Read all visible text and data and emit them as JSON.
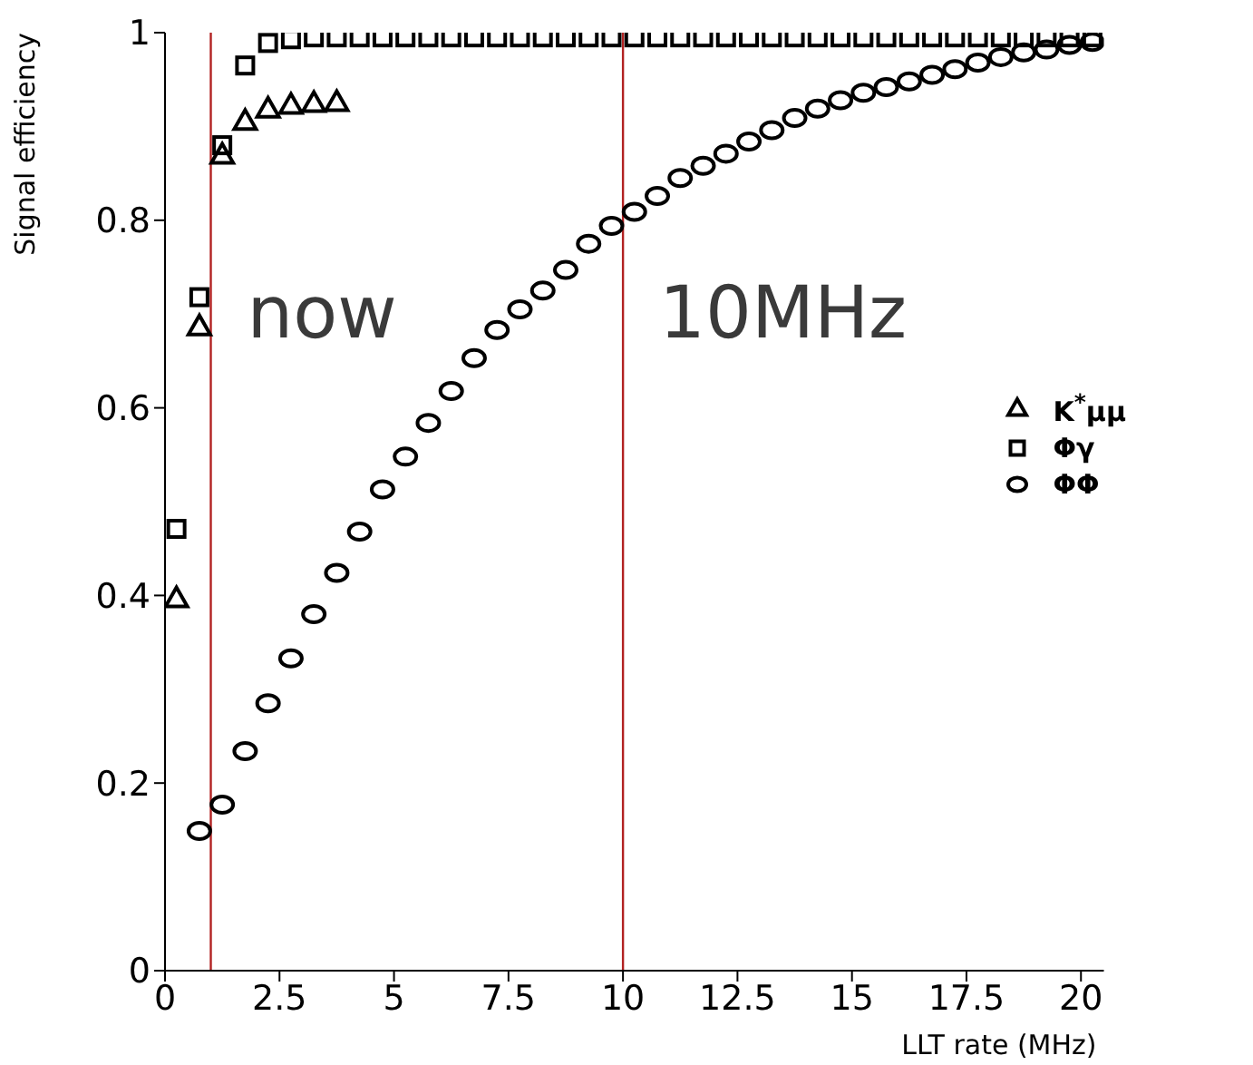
{
  "chart_data": {
    "type": "scatter",
    "xlabel": "LLT rate (MHz)",
    "ylabel": "Signal efficiency",
    "xlim": [
      0,
      20.5
    ],
    "xticks": [
      0,
      2.5,
      5,
      7.5,
      10,
      12.5,
      15,
      17.5,
      20
    ],
    "ylim": [
      0,
      1
    ],
    "yticks": [
      0,
      0.2,
      0.4,
      0.6,
      0.8,
      1
    ],
    "grid": false,
    "legend": "right",
    "series": [
      {
        "name": "K$^{*}$μμ",
        "color": "#000000",
        "marker": "triangle",
        "x": [
          0.25,
          0.75,
          1.25,
          1.75,
          2.25,
          2.75,
          3.25,
          3.75
        ],
        "values": [
          0.397,
          0.687,
          0.87,
          0.906,
          0.919,
          0.923,
          0.925,
          0.926
        ]
      },
      {
        "name": "Φγ",
        "color": "#000000",
        "marker": "square",
        "x": [
          0.25,
          0.75,
          1.25,
          1.75,
          2.25,
          2.75,
          3.25,
          3.75,
          4.25,
          4.75,
          5.25,
          5.75,
          6.25,
          6.75,
          7.25,
          7.75,
          8.25,
          8.75,
          9.25,
          9.75,
          10.25,
          10.75,
          11.25,
          11.75,
          12.25,
          12.75,
          13.25,
          13.75,
          14.25,
          14.75,
          15.25,
          15.75,
          16.25,
          16.75,
          17.25,
          17.75,
          18.25,
          18.75,
          19.25,
          19.75,
          20.25
        ],
        "values": [
          0.471,
          0.718,
          0.88,
          0.965,
          0.989,
          0.993,
          0.995,
          0.995,
          0.995,
          0.995,
          0.995,
          0.995,
          0.995,
          0.995,
          0.995,
          0.995,
          0.995,
          0.995,
          0.995,
          0.995,
          0.995,
          0.995,
          0.995,
          0.995,
          0.995,
          0.995,
          0.995,
          0.995,
          0.995,
          0.995,
          0.995,
          0.995,
          0.995,
          0.995,
          0.995,
          0.995,
          0.995,
          0.995,
          0.995,
          0.995,
          0.995
        ]
      },
      {
        "name": "ΦΦ",
        "color": "#000000",
        "marker": "circle",
        "x": [
          0.75,
          1.25,
          1.75,
          2.25,
          2.75,
          3.25,
          3.75,
          4.25,
          4.75,
          5.25,
          5.75,
          6.25,
          6.75,
          7.25,
          7.75,
          8.25,
          8.75,
          9.25,
          9.75,
          10.25,
          10.75,
          11.25,
          11.75,
          12.25,
          12.75,
          13.25,
          13.75,
          14.25,
          14.75,
          15.25,
          15.75,
          16.25,
          16.75,
          17.25,
          17.75,
          18.25,
          18.75,
          19.25,
          19.75,
          20.25
        ],
        "values": [
          0.149,
          0.177,
          0.234,
          0.285,
          0.333,
          0.38,
          0.424,
          0.468,
          0.513,
          0.548,
          0.584,
          0.618,
          0.653,
          0.683,
          0.705,
          0.725,
          0.747,
          0.775,
          0.794,
          0.809,
          0.826,
          0.845,
          0.858,
          0.871,
          0.884,
          0.896,
          0.909,
          0.919,
          0.928,
          0.936,
          0.942,
          0.948,
          0.955,
          0.961,
          0.968,
          0.974,
          0.979,
          0.982,
          0.987,
          0.99
        ]
      }
    ],
    "ref_lines": [
      {
        "axis": "x",
        "value": 1,
        "label": "now",
        "color": "#b22222"
      },
      {
        "axis": "x",
        "value": 10,
        "label": "10MHz",
        "color": "#b22222"
      }
    ]
  }
}
